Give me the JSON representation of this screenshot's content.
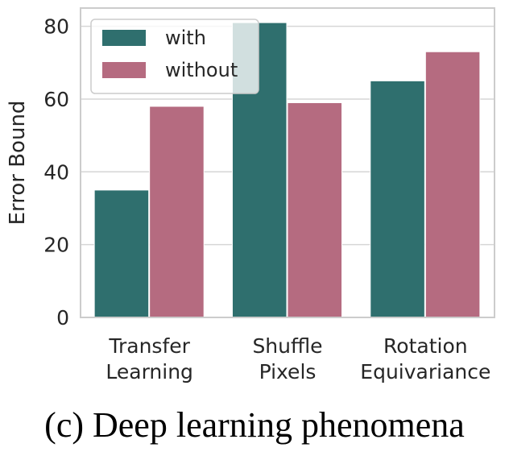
{
  "caption": "(c) Deep learning phenomena",
  "colors": {
    "with": "#2f6f6e",
    "without": "#b56b80",
    "grid": "#d6d6d6",
    "frame": "#cccccc"
  },
  "chart_data": {
    "type": "bar",
    "categories": [
      [
        "Transfer",
        "Learning"
      ],
      [
        "Shuffle",
        "Pixels"
      ],
      [
        "Rotation",
        "Equivariance"
      ]
    ],
    "series": [
      {
        "name": "with",
        "values": [
          35,
          81,
          65
        ]
      },
      {
        "name": "without",
        "values": [
          58,
          59,
          73
        ]
      }
    ],
    "xlabel": "",
    "ylabel": "Error Bound",
    "ylim": [
      0,
      85
    ],
    "yticks": [
      0,
      20,
      40,
      60,
      80
    ],
    "grid": true,
    "legend_position": "top-left"
  }
}
